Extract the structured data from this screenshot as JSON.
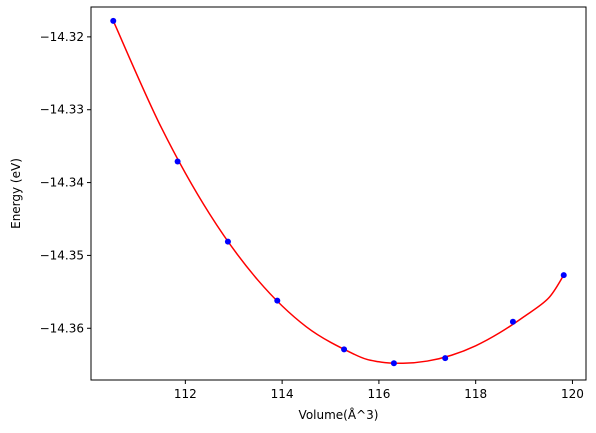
{
  "chart_data": {
    "type": "scatter",
    "xlabel": "Volume(Å^3)",
    "ylabel": "Energy (eV)",
    "xlim": [
      110.05,
      120.28
    ],
    "ylim": [
      -14.3671,
      -14.3159
    ],
    "xticks": [
      112,
      114,
      116,
      118,
      120
    ],
    "xtick_labels": [
      "112",
      "114",
      "116",
      "118",
      "120"
    ],
    "yticks": [
      -14.32,
      -14.33,
      -14.34,
      -14.35,
      -14.36
    ],
    "ytick_labels": [
      "−14.32",
      "−14.33",
      "−14.34",
      "−14.35",
      "−14.36"
    ],
    "grid": false,
    "series": [
      {
        "kind": "points",
        "color": "#0000ff",
        "x": [
          110.51,
          111.84,
          112.88,
          113.9,
          115.28,
          116.31,
          117.37,
          118.77,
          119.82
        ],
        "y": [
          -14.3178,
          -14.3371,
          -14.3481,
          -14.3562,
          -14.3629,
          -14.3648,
          -14.3641,
          -14.3591,
          -14.3527
        ]
      },
      {
        "kind": "fit-curve",
        "color": "#ff0000",
        "x": [
          110.51,
          111.5,
          112.5,
          113.5,
          114.5,
          115.5,
          116.0,
          116.5,
          117.0,
          117.5,
          118.0,
          118.5,
          119.0,
          119.5,
          119.82
        ],
        "y": [
          -14.3178,
          -14.3324,
          -14.3443,
          -14.3534,
          -14.3598,
          -14.3636,
          -14.3646,
          -14.3648,
          -14.3645,
          -14.3637,
          -14.3624,
          -14.3606,
          -14.3584,
          -14.3559,
          -14.3527
        ]
      }
    ]
  }
}
